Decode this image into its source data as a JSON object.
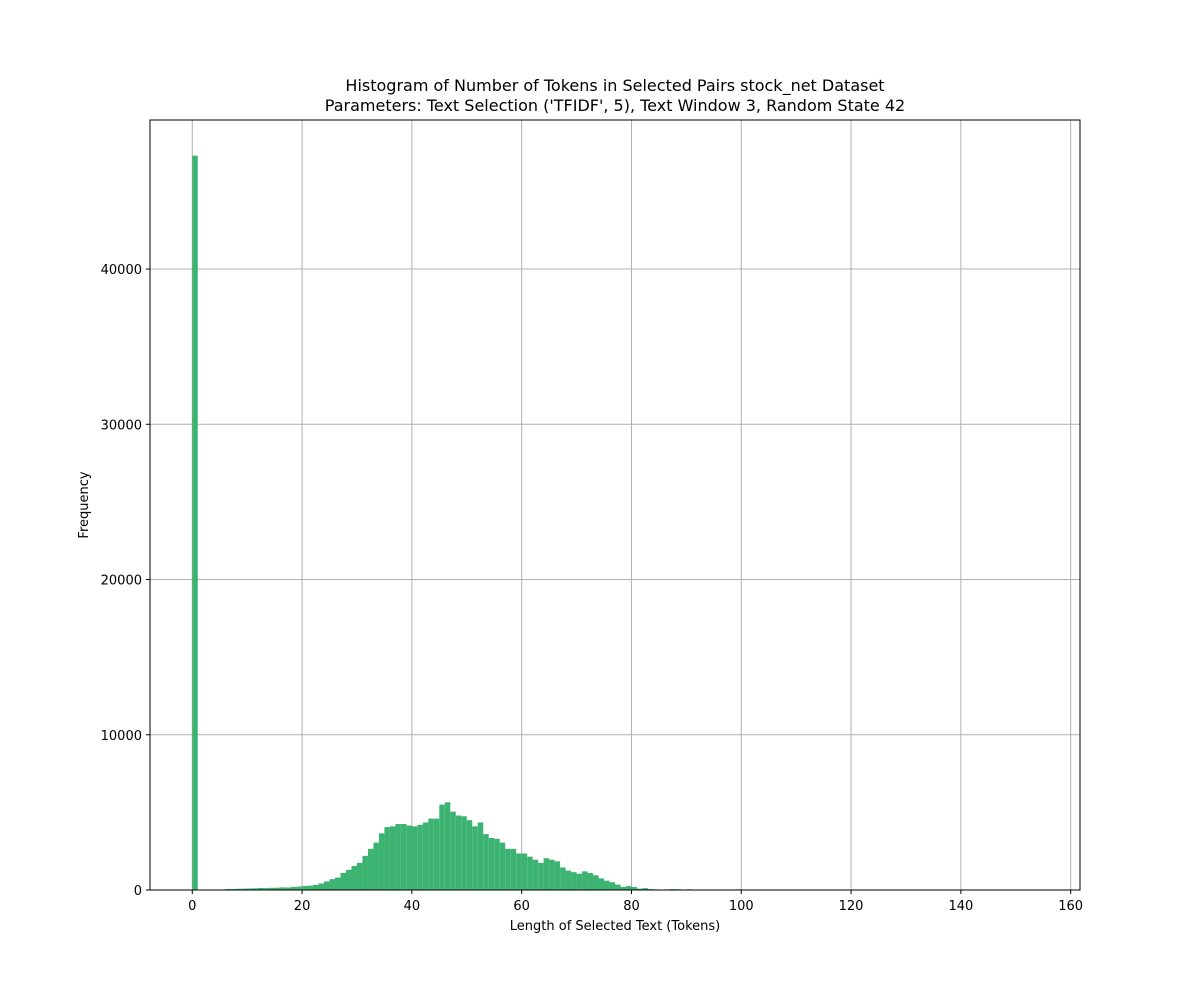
{
  "chart_data": {
    "type": "bar",
    "title_line1": "Histogram of Number of Tokens in Selected Pairs stock_net Dataset",
    "title_line2": "Parameters: Text Selection ('TFIDF', 5), Text Window 3, Random State 42",
    "xlabel": "Length of Selected Text (Tokens)",
    "ylabel": "Frequency",
    "xlim": [
      -7.7,
      161.7
    ],
    "ylim": [
      0,
      49600
    ],
    "xticks": [
      0,
      20,
      40,
      60,
      80,
      100,
      120,
      140,
      160
    ],
    "yticks": [
      0,
      10000,
      20000,
      30000,
      40000
    ],
    "grid": true,
    "color": "#3cb371",
    "bin_width": 1.0,
    "bins": [
      [
        0,
        47300
      ],
      [
        6,
        60
      ],
      [
        7,
        70
      ],
      [
        8,
        80
      ],
      [
        9,
        90
      ],
      [
        10,
        100
      ],
      [
        11,
        110
      ],
      [
        12,
        130
      ],
      [
        13,
        120
      ],
      [
        14,
        140
      ],
      [
        15,
        150
      ],
      [
        16,
        170
      ],
      [
        17,
        160
      ],
      [
        18,
        200
      ],
      [
        19,
        220
      ],
      [
        20,
        260
      ],
      [
        21,
        280
      ],
      [
        22,
        330
      ],
      [
        23,
        420
      ],
      [
        24,
        550
      ],
      [
        25,
        700
      ],
      [
        26,
        800
      ],
      [
        27,
        1100
      ],
      [
        28,
        1300
      ],
      [
        29,
        1550
      ],
      [
        30,
        1750
      ],
      [
        31,
        2200
      ],
      [
        32,
        2650
      ],
      [
        33,
        3050
      ],
      [
        34,
        3650
      ],
      [
        35,
        4050
      ],
      [
        36,
        4100
      ],
      [
        37,
        4250
      ],
      [
        38,
        4250
      ],
      [
        39,
        4150
      ],
      [
        40,
        4100
      ],
      [
        41,
        4200
      ],
      [
        42,
        4350
      ],
      [
        43,
        4600
      ],
      [
        44,
        4600
      ],
      [
        45,
        5500
      ],
      [
        46,
        5650
      ],
      [
        47,
        5050
      ],
      [
        48,
        4800
      ],
      [
        49,
        4750
      ],
      [
        50,
        4500
      ],
      [
        51,
        4100
      ],
      [
        52,
        4350
      ],
      [
        53,
        3600
      ],
      [
        54,
        3350
      ],
      [
        55,
        3300
      ],
      [
        56,
        3050
      ],
      [
        57,
        2650
      ],
      [
        58,
        2650
      ],
      [
        59,
        2350
      ],
      [
        60,
        2350
      ],
      [
        61,
        2150
      ],
      [
        62,
        1950
      ],
      [
        63,
        1750
      ],
      [
        64,
        2050
      ],
      [
        65,
        1950
      ],
      [
        66,
        1850
      ],
      [
        67,
        1450
      ],
      [
        68,
        1250
      ],
      [
        69,
        1150
      ],
      [
        70,
        1050
      ],
      [
        71,
        1200
      ],
      [
        72,
        1100
      ],
      [
        73,
        950
      ],
      [
        74,
        750
      ],
      [
        75,
        600
      ],
      [
        76,
        500
      ],
      [
        77,
        350
      ],
      [
        78,
        200
      ],
      [
        79,
        250
      ],
      [
        80,
        200
      ],
      [
        81,
        90
      ],
      [
        82,
        120
      ],
      [
        83,
        60
      ],
      [
        84,
        40
      ],
      [
        85,
        30
      ],
      [
        86,
        40
      ],
      [
        87,
        60
      ],
      [
        88,
        50
      ],
      [
        89,
        20
      ],
      [
        90,
        50
      ],
      [
        91,
        20
      ],
      [
        92,
        20
      ],
      [
        93,
        10
      ],
      [
        94,
        10
      ],
      [
        95,
        10
      ],
      [
        96,
        10
      ],
      [
        97,
        10
      ],
      [
        98,
        10
      ],
      [
        99,
        40
      ],
      [
        100,
        10
      ],
      [
        101,
        10
      ],
      [
        102,
        8
      ],
      [
        103,
        8
      ],
      [
        104,
        6
      ],
      [
        105,
        6
      ],
      [
        106,
        5
      ],
      [
        107,
        5
      ],
      [
        108,
        4
      ],
      [
        109,
        4
      ],
      [
        110,
        3
      ],
      [
        111,
        3
      ],
      [
        112,
        3
      ],
      [
        113,
        2
      ],
      [
        114,
        2
      ],
      [
        115,
        2
      ],
      [
        116,
        2
      ],
      [
        117,
        2
      ],
      [
        118,
        2
      ],
      [
        119,
        1
      ],
      [
        120,
        1
      ],
      [
        121,
        1
      ],
      [
        122,
        1
      ],
      [
        123,
        1
      ],
      [
        124,
        1
      ],
      [
        125,
        1
      ],
      [
        126,
        1
      ],
      [
        127,
        1
      ],
      [
        128,
        1
      ],
      [
        129,
        1
      ],
      [
        130,
        1
      ],
      [
        131,
        1
      ],
      [
        132,
        1
      ],
      [
        133,
        1
      ],
      [
        134,
        1
      ],
      [
        135,
        1
      ],
      [
        136,
        1
      ],
      [
        137,
        1
      ],
      [
        138,
        1
      ],
      [
        139,
        1
      ],
      [
        140,
        1
      ],
      [
        141,
        1
      ],
      [
        142,
        1
      ],
      [
        143,
        1
      ],
      [
        144,
        1
      ],
      [
        145,
        1
      ],
      [
        146,
        1
      ],
      [
        147,
        1
      ],
      [
        148,
        1
      ],
      [
        149,
        1
      ],
      [
        150,
        1
      ],
      [
        151,
        1
      ],
      [
        152,
        1
      ],
      [
        153,
        1
      ],
      [
        154,
        1
      ]
    ]
  }
}
